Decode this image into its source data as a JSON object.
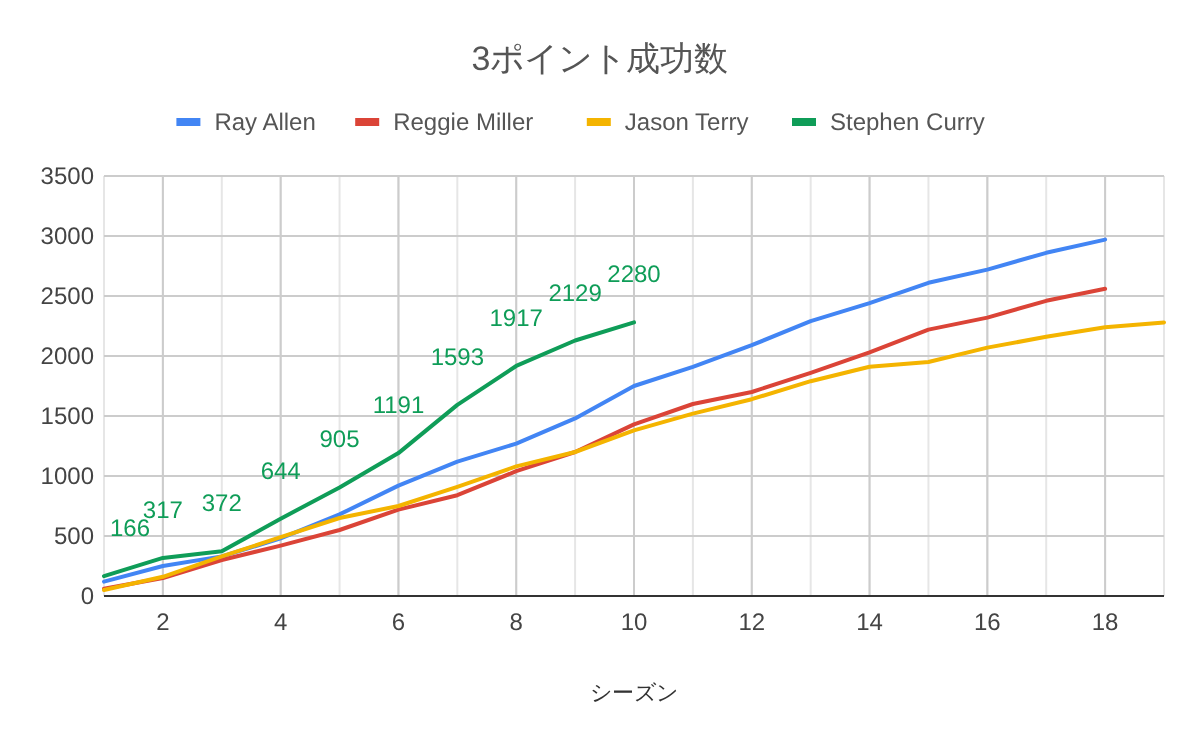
{
  "chart_data": {
    "type": "line",
    "title": "3ポイント成功数",
    "xlabel": "シーズン",
    "xlim": [
      1,
      19
    ],
    "xticks": [
      2,
      4,
      6,
      8,
      10,
      12,
      14,
      16,
      18
    ],
    "ylim": [
      0,
      3500
    ],
    "yticks": [
      0,
      500,
      1000,
      1500,
      2000,
      2500,
      3000,
      3500
    ],
    "grid": true,
    "legend": "top",
    "marker": "none",
    "series": [
      {
        "name": "Ray Allen",
        "color": "#4285f4",
        "x": [
          1,
          2,
          3,
          4,
          5,
          6,
          7,
          8,
          9,
          10,
          11,
          12,
          13,
          14,
          15,
          16,
          17,
          18
        ],
        "values": [
          120,
          250,
          330,
          480,
          680,
          920,
          1120,
          1270,
          1480,
          1750,
          1910,
          2090,
          2290,
          2440,
          2610,
          2720,
          2860,
          2970
        ]
      },
      {
        "name": "Reggie Miller",
        "color": "#db4437",
        "x": [
          1,
          2,
          3,
          4,
          5,
          6,
          7,
          8,
          9,
          10,
          11,
          12,
          13,
          14,
          15,
          16,
          17,
          18
        ],
        "values": [
          60,
          150,
          300,
          420,
          550,
          720,
          840,
          1040,
          1200,
          1430,
          1600,
          1700,
          1860,
          2030,
          2220,
          2320,
          2460,
          2560
        ]
      },
      {
        "name": "Jason Terry",
        "color": "#f4b400",
        "x": [
          1,
          2,
          3,
          4,
          5,
          6,
          7,
          8,
          9,
          10,
          11,
          12,
          13,
          14,
          15,
          16,
          17,
          18,
          19
        ],
        "values": [
          50,
          160,
          330,
          490,
          650,
          750,
          910,
          1080,
          1200,
          1380,
          1520,
          1640,
          1790,
          1910,
          1950,
          2070,
          2160,
          2240,
          2280
        ]
      },
      {
        "name": "Stephen Curry",
        "color": "#0f9d58",
        "x": [
          1,
          2,
          3,
          4,
          5,
          6,
          7,
          8,
          9,
          10
        ],
        "values": [
          166,
          317,
          372,
          644,
          905,
          1191,
          1593,
          1917,
          2129,
          2280
        ],
        "data_labels": true
      }
    ]
  }
}
